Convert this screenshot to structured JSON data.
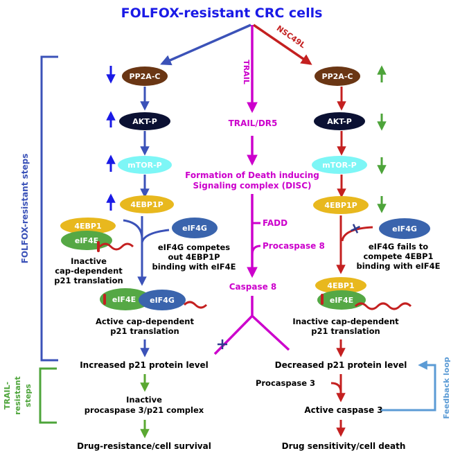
{
  "title": "FOLFOX-resistant CRC cells",
  "colors": {
    "blue": "#1a1ae6",
    "darkblue": "#3b52b8",
    "magenta": "#cc00cc",
    "red": "#c42020",
    "green": "#5aa832",
    "lightblue": "#5b9bd5",
    "brown": "#6a3614",
    "navy": "#0b1133",
    "cyan": "#7df6f6",
    "yellow": "#e8b81e",
    "egreen": "#55a845",
    "eblue": "#3a64ad"
  },
  "side_labels": {
    "folfox_steps": "FOLFOX-resistant steps",
    "trail_steps_1": "TRAIL-",
    "trail_steps_2": "resistant",
    "trail_steps_3": "steps",
    "feedback": "Feedback loop"
  },
  "arrow_labels": {
    "trail": "TRAIL",
    "nsc": "NSC49L"
  },
  "left": {
    "pp2a": "PP2A-C",
    "akt": "AKT-P",
    "mtor": "mTOR-P",
    "ebp1p": "4EBP1P",
    "ebp1": "4EBP1",
    "eif4e": "eIF4E",
    "eif4g": "eIF4G",
    "compete_1": "eIF4G competes",
    "compete_2": "out 4EBP1P",
    "compete_3": "binding with eIF4E",
    "inactive_1": "Inactive",
    "inactive_2": "cap-dependent",
    "inactive_3": "p21 translation",
    "eif4e_b": "eIF4E",
    "eif4g_b": "eIF4G",
    "active_1": "Active cap-dependent",
    "active_2": "p21 translation",
    "increased": "Increased  p21 protein level",
    "complex_1": "Inactive",
    "complex_2": "procaspase 3/p21 complex",
    "outcome": "Drug-resistance/cell survival"
  },
  "center": {
    "trail_dr5": "TRAIL/DR5",
    "disc_1": "Formation of Death inducing",
    "disc_2": "Signaling complex (DISC)",
    "fadd": "FADD",
    "procaspase8": "Procaspase 8",
    "caspase8": "Caspase 8"
  },
  "right": {
    "pp2a": "PP2A-C",
    "akt": "AKT-P",
    "mtor": "mTOR-P",
    "ebp1p": "4EBP1P",
    "eif4g": "eIF4G",
    "fails_1": "eIF4G fails to",
    "fails_2": "compete 4EBP1",
    "fails_3": "binding with eIF4E",
    "ebp1": "4EBP1",
    "eif4e": "eIF4E",
    "inactive_1": "Inactive cap-dependent",
    "inactive_2": "p21 translation",
    "decreased": "Decreased  p21 protein level",
    "procaspase3": "Procaspase 3",
    "caspase3": "Active caspase 3",
    "outcome": "Drug sensitivity/cell death"
  }
}
